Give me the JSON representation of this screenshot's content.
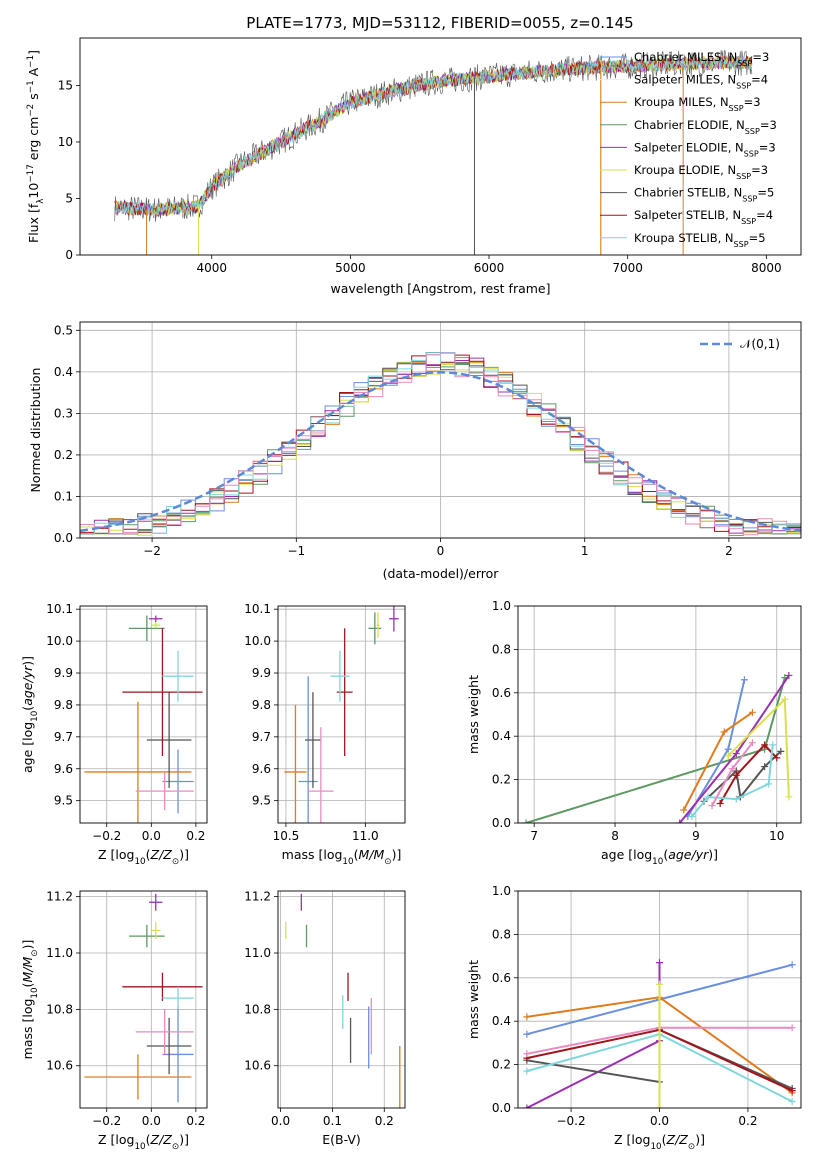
{
  "title": "PLATE=1773, MJD=53112, FIBERID=0055, z=0.145",
  "colors": {
    "chabrier_miles": "#6a8fde",
    "salpeter_miles": "#eeeeee",
    "kroupa_miles": "#e07b1e",
    "chabrier_elodie": "#5e9963",
    "salpeter_elodie": "#9b30b0",
    "kroupa_elodie": "#d8e04a",
    "chabrier_stelib": "#555555",
    "salpeter_stelib": "#a2151c",
    "kroupa_stelib": "#7fd6dc",
    "pink": "#e98bbf",
    "normal": "#5b8bd8"
  },
  "chart_data": [
    {
      "id": "spectrum",
      "type": "line",
      "xlabel": "wavelength [Angstrom, rest frame]",
      "ylabel": "Flux [f_λ10^-17 erg cm^-2 s^-1 A^-1]",
      "xlim": [
        3050,
        8250
      ],
      "ylim": [
        0,
        19.2
      ],
      "xticks": [
        4000,
        5000,
        6000,
        7000,
        8000
      ],
      "yticks": [
        0,
        5,
        10,
        15
      ],
      "legend_position": "top-right",
      "legend": [
        {
          "label": "Chabrier MILES, N_SSP=3",
          "color": "#6a8fde"
        },
        {
          "label": "Salpeter MILES, N_SSP=4",
          "color": "#eeeeee"
        },
        {
          "label": "Kroupa MILES, N_SSP=3",
          "color": "#e07b1e"
        },
        {
          "label": "Chabrier ELODIE, N_SSP=3",
          "color": "#5e9963"
        },
        {
          "label": "Salpeter ELODIE, N_SSP=3",
          "color": "#9b30b0"
        },
        {
          "label": "Kroupa ELODIE, N_SSP=3",
          "color": "#d8e04a"
        },
        {
          "label": "Chabrier STELIB, N_SSP=5",
          "color": "#555555"
        },
        {
          "label": "Salpeter STELIB, N_SSP=4",
          "color": "#a2151c"
        },
        {
          "label": "Kroupa STELIB, N_SSP=5",
          "color": "#7fd6dc"
        }
      ],
      "continuum": [
        [
          3300,
          4.2
        ],
        [
          3600,
          4.0
        ],
        [
          3900,
          4.3
        ],
        [
          4000,
          6.0
        ],
        [
          4200,
          8.0
        ],
        [
          4500,
          10.0
        ],
        [
          4800,
          12.0
        ],
        [
          5000,
          13.5
        ],
        [
          5300,
          14.5
        ],
        [
          5600,
          15.3
        ],
        [
          6000,
          15.8
        ],
        [
          6400,
          16.3
        ],
        [
          6800,
          16.6
        ],
        [
          7200,
          16.8
        ],
        [
          7600,
          17.0
        ],
        [
          7900,
          17.0
        ]
      ]
    },
    {
      "id": "residuals",
      "type": "line",
      "xlabel": "(data-model)/error",
      "ylabel": "Normed distribution",
      "xlim": [
        -2.5,
        2.5
      ],
      "ylim": [
        0,
        0.52
      ],
      "xticks": [
        -2,
        -1,
        0,
        1,
        2
      ],
      "yticks": [
        0.0,
        0.1,
        0.2,
        0.3,
        0.4,
        0.5
      ],
      "legend": [
        {
          "label": "𝒩(0,1)",
          "color": "#5b8bd8"
        }
      ],
      "legend_position": "top-right",
      "grid": true
    },
    {
      "id": "Z-age",
      "type": "scatter",
      "xlabel": "Z [log10(Z/Z⊙)]",
      "ylabel": "age [log10(age/yr)]",
      "xlim": [
        -0.32,
        0.25
      ],
      "ylim": [
        9.43,
        10.11
      ],
      "xticks": [
        -0.2,
        0.0,
        0.2
      ],
      "yticks": [
        9.5,
        9.6,
        9.7,
        9.8,
        9.9,
        10.0,
        10.1
      ],
      "points": [
        {
          "x": 0.12,
          "y": 9.56,
          "xerr": 0.07,
          "yerr": 0.1,
          "color": "#6a8fde"
        },
        {
          "x": -0.06,
          "y": 9.59,
          "xerr": 0.24,
          "yerr": 0.22,
          "color": "#e07b1e"
        },
        {
          "x": -0.02,
          "y": 10.04,
          "xerr": 0.08,
          "yerr": 0.04,
          "color": "#5e9963"
        },
        {
          "x": 0.02,
          "y": 10.07,
          "xerr": 0.03,
          "yerr": 0.01,
          "color": "#9b30b0"
        },
        {
          "x": 0.02,
          "y": 10.05,
          "xerr": 0.02,
          "yerr": 0.01,
          "color": "#d8e04a"
        },
        {
          "x": 0.08,
          "y": 9.69,
          "xerr": 0.1,
          "yerr": 0.15,
          "color": "#555555"
        },
        {
          "x": 0.05,
          "y": 9.84,
          "xerr": 0.18,
          "yerr": 0.2,
          "color": "#a2151c"
        },
        {
          "x": 0.12,
          "y": 9.89,
          "xerr": 0.07,
          "yerr": 0.08,
          "color": "#7fd6dc"
        },
        {
          "x": 0.06,
          "y": 9.53,
          "xerr": 0.13,
          "yerr": 0.06,
          "color": "#e98bbf"
        }
      ]
    },
    {
      "id": "mass-age",
      "type": "scatter",
      "xlabel": "mass [log10(M/M⊙)]",
      "ylabel": "",
      "xlim": [
        10.45,
        11.25
      ],
      "ylim": [
        9.43,
        10.11
      ],
      "xticks": [
        10.5,
        11.0
      ],
      "yticks": [
        9.5,
        9.6,
        9.7,
        9.8,
        9.9,
        10.0,
        10.1
      ],
      "points": [
        {
          "x": 10.64,
          "y": 9.56,
          "xerr": 0.06,
          "yerr": 0.33,
          "color": "#6a8fde"
        },
        {
          "x": 10.56,
          "y": 9.59,
          "xerr": 0.07,
          "yerr": 0.21,
          "color": "#e07b1e"
        },
        {
          "x": 11.06,
          "y": 10.04,
          "xerr": 0.04,
          "yerr": 0.05,
          "color": "#5e9963"
        },
        {
          "x": 11.18,
          "y": 10.07,
          "xerr": 0.03,
          "yerr": 0.04,
          "color": "#9b30b0"
        },
        {
          "x": 11.08,
          "y": 10.05,
          "xerr": 0.01,
          "yerr": 0.04,
          "color": "#d8e04a"
        },
        {
          "x": 10.67,
          "y": 9.69,
          "xerr": 0.05,
          "yerr": 0.15,
          "color": "#555555"
        },
        {
          "x": 10.87,
          "y": 9.84,
          "xerr": 0.05,
          "yerr": 0.2,
          "color": "#a2151c"
        },
        {
          "x": 10.84,
          "y": 9.89,
          "xerr": 0.06,
          "yerr": 0.08,
          "color": "#7fd6dc"
        },
        {
          "x": 10.72,
          "y": 9.53,
          "xerr": 0.08,
          "yerr": 0.2,
          "color": "#e98bbf"
        }
      ]
    },
    {
      "id": "age-weight",
      "type": "line",
      "xlabel": "age [log10(age/yr)]",
      "ylabel": "mass weight",
      "xlim": [
        6.8,
        10.3
      ],
      "ylim": [
        0,
        1
      ],
      "xticks": [
        7,
        8,
        9,
        10
      ],
      "yticks": [
        0.0,
        0.2,
        0.4,
        0.6,
        0.8,
        1.0
      ],
      "series": [
        {
          "color": "#5e9963",
          "points": [
            [
              6.9,
              0.0
            ],
            [
              9.85,
              0.34
            ],
            [
              10.1,
              0.67
            ]
          ]
        },
        {
          "color": "#6a8fde",
          "points": [
            [
              8.9,
              0.03
            ],
            [
              9.4,
              0.34
            ],
            [
              9.6,
              0.66
            ]
          ]
        },
        {
          "color": "#e07b1e",
          "points": [
            [
              8.85,
              0.06
            ],
            [
              9.35,
              0.42
            ],
            [
              9.7,
              0.51
            ]
          ]
        },
        {
          "color": "#9b30b0",
          "points": [
            [
              8.8,
              0.0
            ],
            [
              9.5,
              0.32
            ],
            [
              10.15,
              0.68
            ]
          ]
        },
        {
          "color": "#d8e04a",
          "points": [
            [
              9.4,
              0.31
            ],
            [
              10.1,
              0.57
            ],
            [
              10.15,
              0.12
            ]
          ]
        },
        {
          "color": "#555555",
          "points": [
            [
              9.1,
              0.1
            ],
            [
              9.5,
              0.24
            ],
            [
              9.55,
              0.12
            ],
            [
              9.85,
              0.26
            ],
            [
              10.05,
              0.33
            ]
          ]
        },
        {
          "color": "#a2151c",
          "points": [
            [
              9.3,
              0.09
            ],
            [
              9.5,
              0.22
            ],
            [
              9.85,
              0.36
            ],
            [
              10.0,
              0.3
            ]
          ]
        },
        {
          "color": "#7fd6dc",
          "points": [
            [
              8.95,
              0.03
            ],
            [
              9.15,
              0.12
            ],
            [
              9.5,
              0.11
            ],
            [
              9.9,
              0.18
            ],
            [
              9.95,
              0.36
            ]
          ]
        },
        {
          "color": "#e98bbf",
          "points": [
            [
              9.2,
              0.08
            ],
            [
              9.45,
              0.25
            ],
            [
              9.7,
              0.37
            ]
          ]
        }
      ]
    },
    {
      "id": "Z-mass",
      "type": "scatter",
      "xlabel": "Z [log10(Z/Z⊙)]",
      "ylabel": "mass [log10(M/M⊙)]",
      "xlim": [
        -0.32,
        0.25
      ],
      "ylim": [
        10.45,
        11.22
      ],
      "xticks": [
        -0.2,
        0.0,
        0.2
      ],
      "yticks": [
        10.6,
        10.8,
        11.0,
        11.2
      ],
      "points": [
        {
          "x": 0.12,
          "y": 10.64,
          "xerr": 0.07,
          "yerr": 0.17,
          "color": "#6a8fde"
        },
        {
          "x": -0.06,
          "y": 10.56,
          "xerr": 0.24,
          "yerr": 0.08,
          "color": "#e07b1e"
        },
        {
          "x": -0.02,
          "y": 11.06,
          "xerr": 0.08,
          "yerr": 0.04,
          "color": "#5e9963"
        },
        {
          "x": 0.02,
          "y": 11.18,
          "xerr": 0.03,
          "yerr": 0.03,
          "color": "#9b30b0"
        },
        {
          "x": 0.02,
          "y": 11.08,
          "xerr": 0.02,
          "yerr": 0.03,
          "color": "#d8e04a"
        },
        {
          "x": 0.08,
          "y": 10.67,
          "xerr": 0.1,
          "yerr": 0.1,
          "color": "#555555"
        },
        {
          "x": 0.05,
          "y": 10.88,
          "xerr": 0.18,
          "yerr": 0.05,
          "color": "#a2151c"
        },
        {
          "x": 0.12,
          "y": 10.84,
          "xerr": 0.07,
          "yerr": 0.04,
          "color": "#7fd6dc"
        },
        {
          "x": 0.06,
          "y": 10.72,
          "xerr": 0.13,
          "yerr": 0.08,
          "color": "#e98bbf"
        }
      ]
    },
    {
      "id": "ebv-mass",
      "type": "scatter",
      "xlabel": "E(B-V)",
      "ylabel": "",
      "xlim": [
        -0.005,
        0.24
      ],
      "ylim": [
        10.45,
        11.22
      ],
      "xticks": [
        0.0,
        0.1,
        0.2
      ],
      "yticks": [
        10.6,
        10.8,
        11.0,
        11.2
      ],
      "points": [
        {
          "x": 0.17,
          "y": 10.7,
          "xerr": 0,
          "yerr": 0.11,
          "color": "#6a8fde"
        },
        {
          "x": 0.23,
          "y": 10.56,
          "xerr": 0,
          "yerr": 0.11,
          "color": "#e07b1e"
        },
        {
          "x": 0.05,
          "y": 11.06,
          "xerr": 0,
          "yerr": 0.04,
          "color": "#5e9963"
        },
        {
          "x": 0.04,
          "y": 11.18,
          "xerr": 0,
          "yerr": 0.03,
          "color": "#9b30b0"
        },
        {
          "x": 0.01,
          "y": 11.08,
          "xerr": 0,
          "yerr": 0.03,
          "color": "#d8e04a"
        },
        {
          "x": 0.135,
          "y": 10.69,
          "xerr": 0,
          "yerr": 0.08,
          "color": "#555555"
        },
        {
          "x": 0.13,
          "y": 10.88,
          "xerr": 0,
          "yerr": 0.05,
          "color": "#a2151c"
        },
        {
          "x": 0.12,
          "y": 10.79,
          "xerr": 0,
          "yerr": 0.06,
          "color": "#7fd6dc"
        },
        {
          "x": 0.175,
          "y": 10.74,
          "xerr": 0,
          "yerr": 0.1,
          "color": "#e98bbf"
        }
      ]
    },
    {
      "id": "Z-weight",
      "type": "line",
      "xlabel": "Z [log10(Z/Z⊙)]",
      "ylabel": "mass weight",
      "xlim": [
        -0.32,
        0.32
      ],
      "ylim": [
        0,
        1
      ],
      "xticks": [
        -0.2,
        0.0,
        0.2
      ],
      "yticks": [
        0.0,
        0.2,
        0.4,
        0.6,
        0.8,
        1.0
      ],
      "series": [
        {
          "color": "#6a8fde",
          "points": [
            [
              -0.3,
              0.34
            ],
            [
              0.0,
              0.5
            ],
            [
              0.3,
              0.66
            ]
          ]
        },
        {
          "color": "#e07b1e",
          "points": [
            [
              -0.3,
              0.42
            ],
            [
              0.0,
              0.51
            ],
            [
              0.3,
              0.07
            ]
          ]
        },
        {
          "color": "#9b30b0",
          "points": [
            [
              -0.3,
              0.0
            ],
            [
              0.0,
              0.31
            ],
            [
              0.0,
              0.67
            ]
          ]
        },
        {
          "color": "#555555",
          "points": [
            [
              -0.3,
              0.22
            ],
            [
              0.0,
              0.12
            ],
            [
              0.0,
              0.36
            ],
            [
              0.3,
              0.09
            ]
          ]
        },
        {
          "color": "#a2151c",
          "points": [
            [
              -0.3,
              0.23
            ],
            [
              0.0,
              0.36
            ],
            [
              0.3,
              0.08
            ]
          ]
        },
        {
          "color": "#7fd6dc",
          "points": [
            [
              -0.3,
              0.17
            ],
            [
              0.0,
              0.34
            ],
            [
              0.3,
              0.03
            ]
          ]
        },
        {
          "color": "#e98bbf",
          "points": [
            [
              -0.3,
              0.25
            ],
            [
              0.0,
              0.37
            ],
            [
              0.3,
              0.37
            ]
          ]
        },
        {
          "color": "#d8e04a",
          "points": [
            [
              0.0,
              0.57
            ],
            [
              0.0,
              0.0
            ]
          ]
        }
      ]
    }
  ]
}
